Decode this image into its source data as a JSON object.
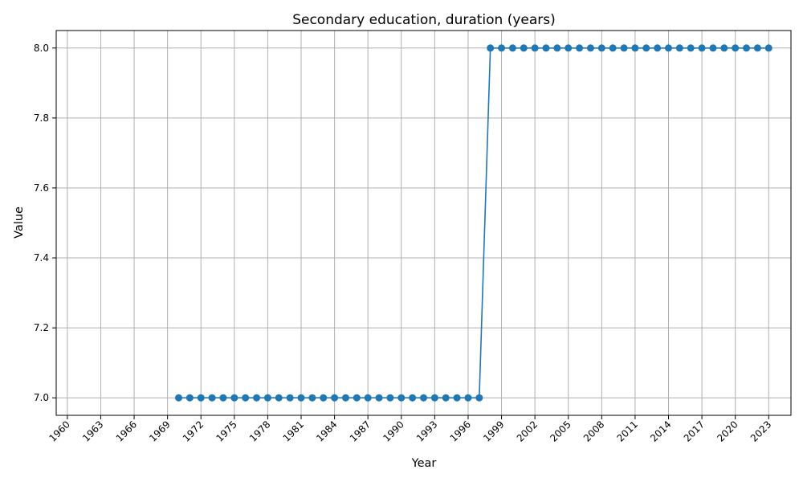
{
  "chart_data": {
    "type": "line",
    "title": "Secondary education, duration (years)",
    "xlabel": "Year",
    "ylabel": "Value",
    "xlim": [
      1959,
      2025
    ],
    "ylim": [
      6.95,
      8.05
    ],
    "grid": true,
    "xticks": [
      "1960",
      "1963",
      "1966",
      "1969",
      "1972",
      "1975",
      "1978",
      "1981",
      "1984",
      "1987",
      "1990",
      "1993",
      "1996",
      "1999",
      "2002",
      "2005",
      "2008",
      "2011",
      "2014",
      "2017",
      "2020",
      "2023"
    ],
    "yticks": [
      "7.0",
      "7.2",
      "7.4",
      "7.6",
      "7.8",
      "8.0"
    ],
    "series": [
      {
        "color": "#1f77b4",
        "marker": "circle",
        "x": [
          1970,
          1971,
          1972,
          1973,
          1974,
          1975,
          1976,
          1977,
          1978,
          1979,
          1980,
          1981,
          1982,
          1983,
          1984,
          1985,
          1986,
          1987,
          1988,
          1989,
          1990,
          1991,
          1992,
          1993,
          1994,
          1995,
          1996,
          1997,
          1998,
          1999,
          2000,
          2001,
          2002,
          2003,
          2004,
          2005,
          2006,
          2007,
          2008,
          2009,
          2010,
          2011,
          2012,
          2013,
          2014,
          2015,
          2016,
          2017,
          2018,
          2019,
          2020,
          2021,
          2022,
          2023
        ],
        "values": [
          7,
          7,
          7,
          7,
          7,
          7,
          7,
          7,
          7,
          7,
          7,
          7,
          7,
          7,
          7,
          7,
          7,
          7,
          7,
          7,
          7,
          7,
          7,
          7,
          7,
          7,
          7,
          7,
          8,
          8,
          8,
          8,
          8,
          8,
          8,
          8,
          8,
          8,
          8,
          8,
          8,
          8,
          8,
          8,
          8,
          8,
          8,
          8,
          8,
          8,
          8,
          8,
          8,
          8
        ]
      }
    ]
  }
}
